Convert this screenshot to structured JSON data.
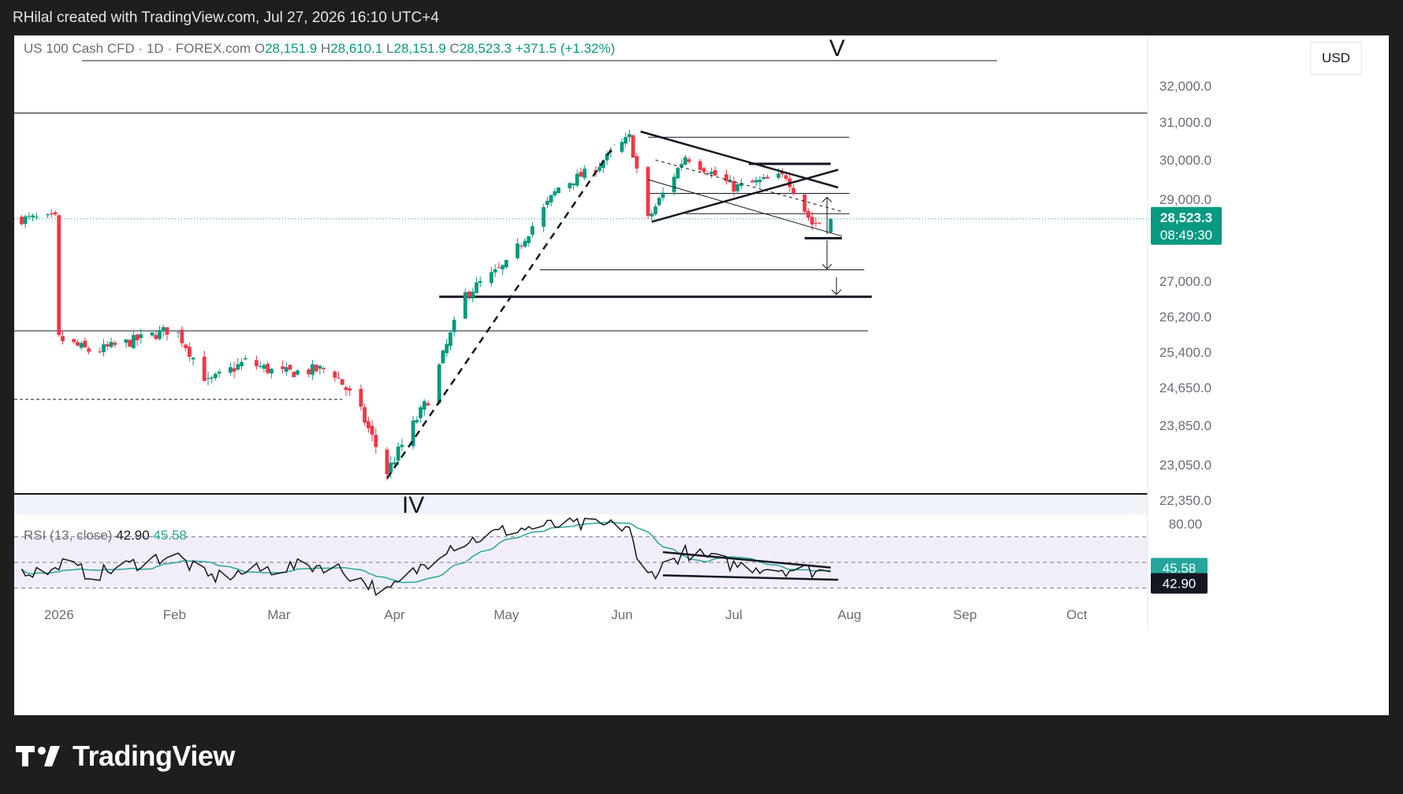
{
  "header": {
    "text": "RHilal created with TradingView.com, Jul 27, 2026 16:10 UTC+4"
  },
  "legend": {
    "symbol": "US 100 Cash CFD · 1D · FOREX.com",
    "o_label": "O",
    "o_value": "28,151.9",
    "h_label": "H",
    "h_value": "28,610.1",
    "l_label": "L",
    "l_value": "28,151.9",
    "c_label": "C",
    "c_value": "28,523.3",
    "change": "+371.5 (+1.32%)"
  },
  "currency_button": "USD",
  "wave_labels": {
    "top": "V",
    "bottom": "IV"
  },
  "price_axis": {
    "ticks": [
      "32,000.0",
      "31,000.0",
      "30,000.0",
      "29,000.0",
      "27,000.0",
      "26,200.0",
      "25,400.0",
      "24,650.0",
      "23,850.0",
      "23,050.0",
      "22,350.0"
    ],
    "last_price": "28,523.3",
    "countdown": "08:49:30"
  },
  "rsi": {
    "title": "RSI (13, close)",
    "value": "42.90",
    "ma_value": "45.58",
    "upper_tick": "80.00"
  },
  "time_axis": [
    "2026",
    "Feb",
    "Mar",
    "Apr",
    "May",
    "Jun",
    "Jul",
    "Aug",
    "Sep",
    "Oct"
  ],
  "logo": {
    "text": "TradingView"
  },
  "colors": {
    "up": "#089981",
    "down": "#f23645",
    "rsi_ma": "#26a69a",
    "rsi_band": "#7e57c2",
    "badge": "#089981",
    "text": "#131722",
    "axis_text": "#6a6d78"
  },
  "chart_data": {
    "type": "candlestick",
    "title": "US 100 Cash CFD · 1D · FOREX.com",
    "x_range": [
      "2025-12-20",
      "2026-10-20"
    ],
    "y_ticks": [
      32000,
      31000,
      30000,
      29000,
      27000,
      26200,
      25400,
      24650,
      23850,
      23050,
      22350
    ],
    "ohlc_last": {
      "open": 28151.9,
      "high": 28610.1,
      "low": 28151.9,
      "close": 28523.3,
      "change": 371.5,
      "change_pct": 1.32
    },
    "price_path_close": [
      [
        "2026-01-01",
        25700
      ],
      [
        "2026-01-10",
        25400
      ],
      [
        "2026-01-25",
        25750
      ],
      [
        "2026-02-01",
        25950
      ],
      [
        "2026-02-10",
        24750
      ],
      [
        "2026-02-20",
        25200
      ],
      [
        "2026-03-01",
        24950
      ],
      [
        "2026-03-15",
        25050
      ],
      [
        "2026-03-22",
        24300
      ],
      [
        "2026-03-30",
        22900
      ],
      [
        "2026-04-10",
        24400
      ],
      [
        "2026-04-20",
        26700
      ],
      [
        "2026-05-01",
        27400
      ],
      [
        "2026-05-15",
        29300
      ],
      [
        "2026-05-25",
        29800
      ],
      [
        "2026-06-03",
        30600
      ],
      [
        "2026-06-08",
        28500
      ],
      [
        "2026-06-18",
        30100
      ],
      [
        "2026-07-01",
        29300
      ],
      [
        "2026-07-15",
        29600
      ],
      [
        "2026-07-22",
        28400
      ],
      [
        "2026-07-27",
        28523.3
      ]
    ],
    "horizontal_levels": [
      31250,
      30600,
      29900,
      29150,
      28650,
      28050,
      27280,
      26650,
      25880,
      24400
    ],
    "rsi_series": {
      "name": "RSI (13, close)",
      "points": [
        [
          "2026-01-01",
          50
        ],
        [
          "2026-01-10",
          40
        ],
        [
          "2026-01-25",
          52
        ],
        [
          "2026-02-01",
          56
        ],
        [
          "2026-02-10",
          38
        ],
        [
          "2026-03-01",
          46
        ],
        [
          "2026-03-15",
          48
        ],
        [
          "2026-03-30",
          26
        ],
        [
          "2026-04-15",
          62
        ],
        [
          "2026-05-01",
          75
        ],
        [
          "2026-05-15",
          79
        ],
        [
          "2026-06-03",
          78
        ],
        [
          "2026-06-06",
          36
        ],
        [
          "2026-06-18",
          58
        ],
        [
          "2026-07-01",
          48
        ],
        [
          "2026-07-15",
          45
        ],
        [
          "2026-07-27",
          42.9
        ]
      ],
      "ma_last": 45.58,
      "last": 42.9,
      "band": [
        30,
        70
      ]
    }
  }
}
